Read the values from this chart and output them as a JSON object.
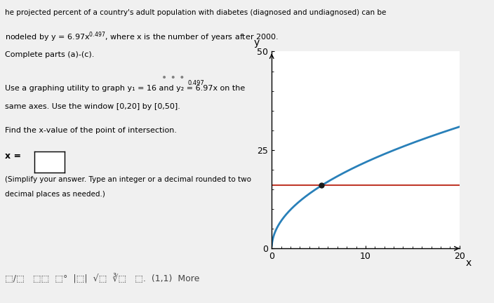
{
  "title": "",
  "xlim": [
    0,
    20
  ],
  "ylim": [
    0,
    50
  ],
  "xlabel": "x",
  "ylabel": "y",
  "x_ticks": [
    0,
    10,
    20
  ],
  "y_ticks": [
    0,
    25,
    50
  ],
  "y1_value": 16,
  "y2_a": 6.97,
  "y2_exp": 0.497,
  "y1_color": "#c0392b",
  "y2_color": "#2980b9",
  "intersection_color": "#1a1a1a",
  "background_color": "#f0f0f0",
  "plot_bg": "#ffffff",
  "fig_width": 7.04,
  "fig_height": 4.32,
  "dpi": 100,
  "text_content": {
    "header1": "he projected percent of a country's adult population with diabetes (diagnosed and undiagnosed) can be",
    "header2": "nodeled by y = 6.97x^{0.497}, where x is the number of years after 2000.",
    "header3": "Complete parts (a)-(c).",
    "part_label": "Use a graphing utility to graph y_1 = 16 and y_2 = 6.97x^{0.497} on the",
    "part_label2": "same axes. Use the window [0,20] by [0,50].",
    "find_x": "Find the x-value of the point of intersection.",
    "x_eq": "x =",
    "simplify": "(Simplify your answer. Type an integer or a decimal rounded to two",
    "simplify2": "decimal places as needed.)"
  }
}
